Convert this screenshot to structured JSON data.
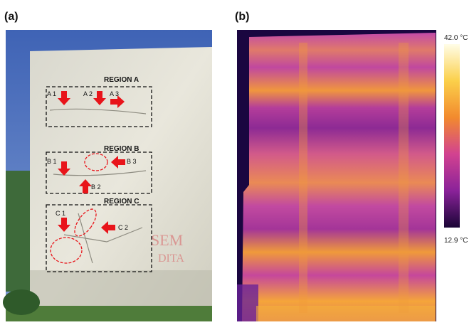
{
  "panels": [
    {
      "label": "(a)",
      "regions": [
        "REGION  A",
        "REGION  B",
        "REGION  C"
      ],
      "points": [
        "A 1",
        "A 2",
        "A 3",
        "B 1",
        "B 2",
        "B 3",
        "C 1",
        "C 2"
      ]
    },
    {
      "label": "(b)",
      "colorbar": {
        "max": "42.0 °C",
        "min": "12.9 °C"
      }
    }
  ]
}
